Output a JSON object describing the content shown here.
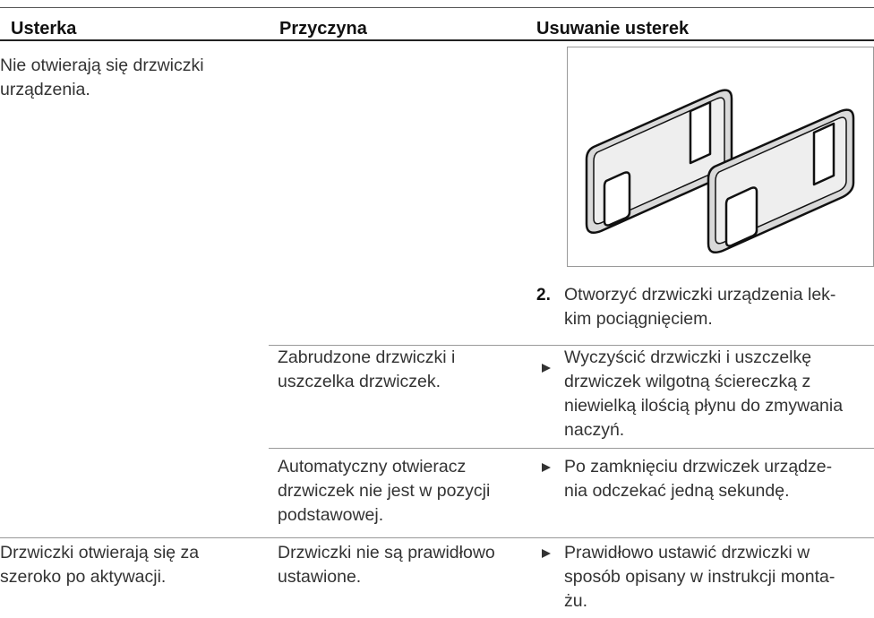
{
  "table": {
    "headers": [
      "Usterka",
      "Przyczyna",
      "Usuwanie usterek"
    ],
    "rows": [
      {
        "fault": [
          "Nie otwierają się drzwiczki",
          "urządzenia."
        ],
        "remedy": {
          "step": "2.",
          "lines": [
            "Otworzyć drzwiczki urządzenia lek-",
            "kim pociągnięciem."
          ]
        }
      },
      {
        "cause": [
          "Zabrudzone drzwiczki i",
          "uszczelka drzwiczek."
        ],
        "remedy": {
          "lines": [
            "Wyczyścić drzwiczki i uszczelkę",
            "drzwiczek wilgotną ściereczką z",
            "niewielką ilością płynu do zmywania",
            "naczyń."
          ]
        }
      },
      {
        "cause": [
          "Automatyczny otwieracz",
          "drzwiczek nie jest w pozycji",
          "podstawowej."
        ],
        "remedy": {
          "lines": [
            "Po zamknięciu drzwiczek urządze-",
            "nia odczekać jedną sekundę."
          ]
        }
      },
      {
        "fault": [
          "Drzwiczki otwierają się za",
          "szeroko po aktywacji."
        ],
        "cause": [
          "Drzwiczki nie są prawidłowo",
          "ustawione."
        ],
        "remedy": {
          "lines": [
            "Prawidłowo ustawić drzwiczki w",
            "sposób opisany w instrukcji monta-",
            "żu."
          ]
        }
      }
    ]
  }
}
